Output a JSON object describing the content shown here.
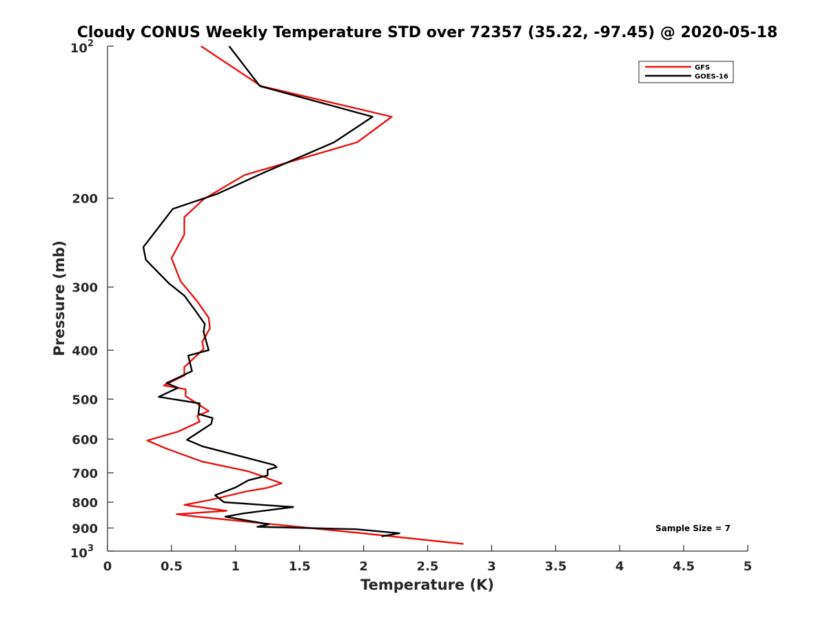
{
  "chart_data": {
    "type": "line",
    "title": "Cloudy CONUS Weekly Temperature STD over 72357 (35.22, -97.45) @ 2020-05-18",
    "xlabel": "Temperature (K)",
    "ylabel": "Pressure (mb)",
    "xlim": [
      0,
      5
    ],
    "ylim": [
      100,
      1000
    ],
    "y_scale": "log",
    "y_reversed": true,
    "x_ticks": [
      "0",
      "0.5",
      "1",
      "1.5",
      "2",
      "2.5",
      "3",
      "3.5",
      "4",
      "4.5",
      "5"
    ],
    "y_ticks": [
      {
        "value": 100,
        "base": "10",
        "exp": "2"
      },
      {
        "value": 200,
        "label": "200"
      },
      {
        "value": 300,
        "label": "300"
      },
      {
        "value": 400,
        "label": "400"
      },
      {
        "value": 500,
        "label": "500"
      },
      {
        "value": 600,
        "label": "600"
      },
      {
        "value": 700,
        "label": "700"
      },
      {
        "value": 800,
        "label": "800"
      },
      {
        "value": 900,
        "label": "900"
      },
      {
        "value": 1000,
        "base": "10",
        "exp": "3"
      }
    ],
    "grid": false,
    "legend_position": "top-right",
    "series": [
      {
        "name": "GFS",
        "color": "#e8110f",
        "x": [
          0.73,
          1.2,
          2.22,
          1.95,
          1.07,
          0.75,
          0.6,
          0.6,
          0.5,
          0.57,
          0.7,
          0.79,
          0.8,
          0.74,
          0.75,
          0.6,
          0.6,
          0.44,
          0.61,
          0.61,
          0.79,
          0.7,
          0.72,
          0.55,
          0.31,
          0.47,
          0.74,
          1.1,
          1.24,
          1.25,
          1.36,
          1.25,
          1.08,
          0.82,
          0.6,
          0.93,
          0.54,
          0.67,
          1.1,
          1.96,
          2.78
        ],
        "y": [
          100,
          120,
          138,
          155,
          180,
          201,
          218,
          236,
          263,
          292,
          320,
          345,
          362,
          385,
          398,
          432,
          449,
          470,
          478,
          493,
          528,
          540,
          554,
          580,
          604,
          628,
          665,
          695,
          715,
          718,
          734,
          749,
          762,
          790,
          810,
          832,
          845,
          853,
          875,
          920,
          968
        ]
      },
      {
        "name": "GOES-16",
        "color": "#000000",
        "x": [
          0.95,
          1.19,
          2.07,
          1.77,
          1.22,
          0.86,
          0.51,
          0.39,
          0.28,
          0.3,
          0.48,
          0.6,
          0.69,
          0.76,
          0.75,
          0.79,
          0.63,
          0.66,
          0.46,
          0.55,
          0.4,
          0.72,
          0.71,
          0.82,
          0.81,
          0.62,
          0.74,
          1.3,
          1.32,
          1.25,
          1.25,
          1.1,
          1.0,
          0.84,
          0.91,
          1.45,
          1.06,
          0.92,
          1.26,
          1.17,
          1.94,
          2.28,
          2.14
        ],
        "y": [
          100,
          120,
          138,
          155,
          178,
          196,
          210,
          230,
          250,
          265,
          295,
          312,
          335,
          355,
          368,
          400,
          410,
          440,
          465,
          475,
          495,
          510,
          535,
          545,
          560,
          602,
          620,
          675,
          682,
          690,
          708,
          724,
          748,
          775,
          800,
          818,
          842,
          855,
          885,
          895,
          905,
          922,
          935
        ]
      }
    ],
    "annotations": [
      {
        "text": "Sample Size = 7",
        "position": "bottom-right"
      }
    ]
  }
}
